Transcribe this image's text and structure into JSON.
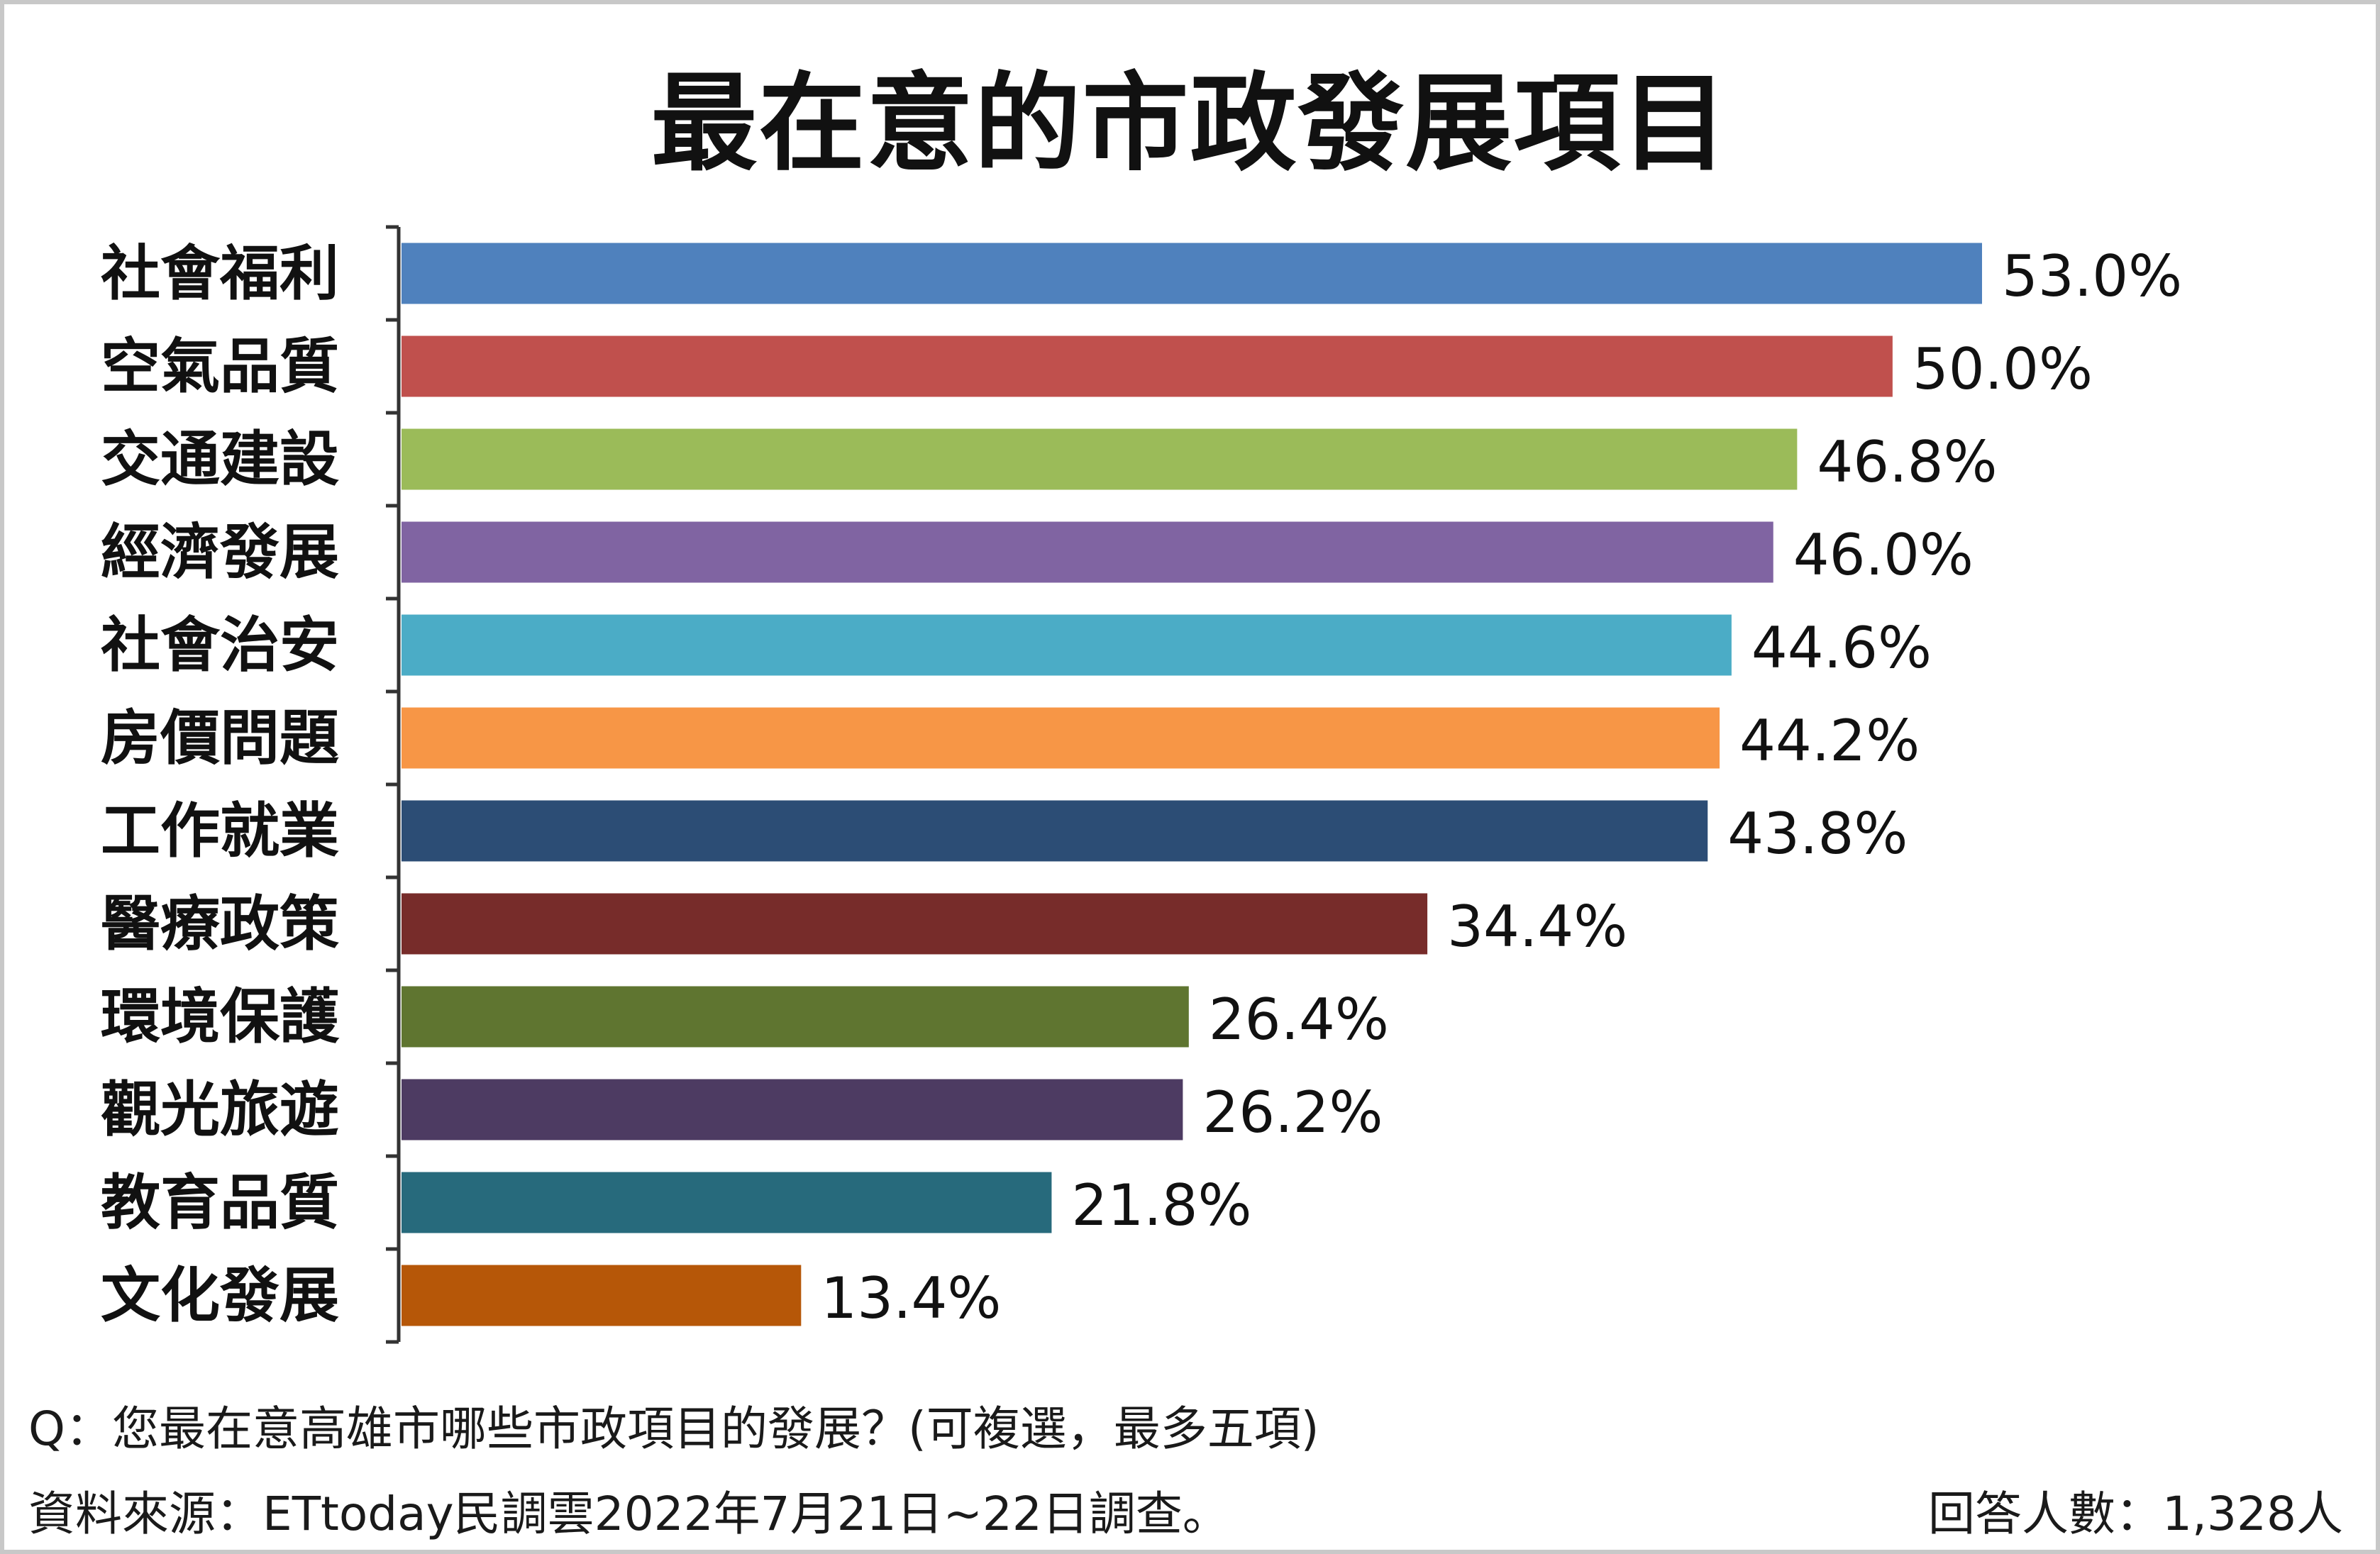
{
  "title": "最在意的市政發展項目",
  "footer": {
    "question": "Q：您最在意高雄市哪些市政項目的發展？(可複選，最多五項)",
    "source": "資料來源：ETtoday民調雲2022年7月21日~22日調查。",
    "respondents": "回答人數：1,328人"
  },
  "chart_data": {
    "type": "bar",
    "orientation": "horizontal",
    "title": "最在意的市政發展項目",
    "unit": "%",
    "categories": [
      "社會福利",
      "空氣品質",
      "交通建設",
      "經濟發展",
      "社會治安",
      "房價問題",
      "工作就業",
      "醫療政策",
      "環境保護",
      "觀光旅遊",
      "教育品質",
      "文化發展"
    ],
    "values": [
      53.0,
      50.0,
      46.8,
      46.0,
      44.6,
      44.2,
      43.8,
      34.4,
      26.4,
      26.2,
      21.8,
      13.4
    ],
    "value_labels": [
      "53.0%",
      "50.0%",
      "46.8%",
      "46.0%",
      "44.6%",
      "44.2%",
      "43.8%",
      "34.4%",
      "26.4%",
      "26.2%",
      "21.8%",
      "13.4%"
    ],
    "colors": [
      "#4f81bd",
      "#c0504d",
      "#9bbb59",
      "#8064a2",
      "#4bacc6",
      "#f79646",
      "#2c4d75",
      "#772c2a",
      "#5f7530",
      "#4d3b62",
      "#276a7c",
      "#b65708"
    ],
    "xlim": [
      0,
      53.0
    ],
    "grid": false,
    "legend": "none"
  }
}
